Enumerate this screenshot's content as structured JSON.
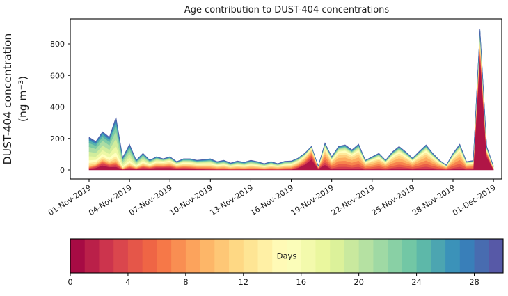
{
  "chart_data": {
    "type": "stacked_area",
    "title": "Age contribution to DUST-404 concentrations",
    "ylabel_line1": "DUST-404 concentration",
    "ylabel_line2": "(ng m⁻³)",
    "x_axis": {
      "start": "01-Nov-2019 00:00",
      "end": "01-Dec-2019 00:00",
      "step_days": 0.5,
      "tick_interval_days": 3,
      "tick_labels": [
        "01-Nov-2019",
        "04-Nov-2019",
        "07-Nov-2019",
        "10-Nov-2019",
        "13-Nov-2019",
        "16-Nov-2019",
        "19-Nov-2019",
        "22-Nov-2019",
        "25-Nov-2019",
        "28-Nov-2019",
        "01-Dec-2019"
      ]
    },
    "y_axis": {
      "ticks": [
        0,
        200,
        400,
        600,
        800
      ],
      "lim": [
        -57,
        960
      ]
    },
    "totals_ng_m3": [
      208,
      181,
      243,
      208,
      336,
      80,
      164,
      62,
      106,
      62,
      84,
      71,
      84,
      53,
      71,
      71,
      62,
      66,
      71,
      53,
      62,
      44,
      57,
      49,
      62,
      53,
      40,
      53,
      40,
      55,
      57,
      75,
      106,
      150,
      25,
      172,
      84,
      150,
      159,
      128,
      164,
      62,
      84,
      106,
      62,
      115,
      150,
      115,
      75,
      119,
      159,
      106,
      62,
      31,
      106,
      164,
      53,
      60,
      895,
      150,
      25
    ],
    "age_bands": {
      "bin_days": 2,
      "count": 15,
      "vmin_days": 0,
      "vmax_days": 30
    },
    "age_profile_keyframes": [
      {
        "t": 0.0,
        "fracs": [
          0.03,
          0.02,
          0.02,
          0.02,
          0.03,
          0.04,
          0.06,
          0.08,
          0.12,
          0.14,
          0.15,
          0.12,
          0.08,
          0.05,
          0.04
        ]
      },
      {
        "t": 1.0,
        "fracs": [
          0.12,
          0.05,
          0.03,
          0.03,
          0.03,
          0.04,
          0.05,
          0.07,
          0.1,
          0.12,
          0.13,
          0.1,
          0.07,
          0.04,
          0.02
        ]
      },
      {
        "t": 2.5,
        "fracs": [
          0.03,
          0.03,
          0.02,
          0.02,
          0.03,
          0.04,
          0.05,
          0.08,
          0.13,
          0.15,
          0.15,
          0.11,
          0.07,
          0.05,
          0.04
        ]
      },
      {
        "t": 5.5,
        "fracs": [
          0.18,
          0.08,
          0.06,
          0.07,
          0.08,
          0.08,
          0.09,
          0.09,
          0.07,
          0.05,
          0.04,
          0.04,
          0.03,
          0.02,
          0.02
        ]
      },
      {
        "t": 9.0,
        "fracs": [
          0.05,
          0.05,
          0.06,
          0.07,
          0.08,
          0.09,
          0.1,
          0.09,
          0.08,
          0.07,
          0.06,
          0.06,
          0.05,
          0.05,
          0.04
        ]
      },
      {
        "t": 12.0,
        "fracs": [
          0.04,
          0.04,
          0.05,
          0.07,
          0.09,
          0.1,
          0.1,
          0.09,
          0.08,
          0.07,
          0.07,
          0.06,
          0.05,
          0.05,
          0.04
        ]
      },
      {
        "t": 15.0,
        "fracs": [
          0.05,
          0.05,
          0.07,
          0.09,
          0.1,
          0.1,
          0.1,
          0.09,
          0.08,
          0.07,
          0.06,
          0.05,
          0.04,
          0.03,
          0.02
        ]
      },
      {
        "t": 16.5,
        "fracs": [
          0.45,
          0.1,
          0.08,
          0.08,
          0.07,
          0.06,
          0.05,
          0.03,
          0.02,
          0.02,
          0.01,
          0.01,
          0.01,
          0.005,
          0.005
        ]
      },
      {
        "t": 18.0,
        "fracs": [
          0.06,
          0.08,
          0.11,
          0.13,
          0.13,
          0.11,
          0.09,
          0.07,
          0.05,
          0.04,
          0.03,
          0.03,
          0.03,
          0.02,
          0.02
        ]
      },
      {
        "t": 21.0,
        "fracs": [
          0.05,
          0.07,
          0.1,
          0.13,
          0.14,
          0.12,
          0.09,
          0.07,
          0.05,
          0.04,
          0.04,
          0.03,
          0.03,
          0.02,
          0.02
        ]
      },
      {
        "t": 24.0,
        "fracs": [
          0.06,
          0.08,
          0.11,
          0.13,
          0.13,
          0.11,
          0.09,
          0.07,
          0.05,
          0.04,
          0.03,
          0.03,
          0.03,
          0.02,
          0.02
        ]
      },
      {
        "t": 27.5,
        "fracs": [
          0.05,
          0.08,
          0.12,
          0.14,
          0.13,
          0.11,
          0.09,
          0.07,
          0.05,
          0.04,
          0.03,
          0.03,
          0.02,
          0.02,
          0.02
        ]
      },
      {
        "t": 28.5,
        "fracs": [
          0.08,
          0.09,
          0.11,
          0.12,
          0.12,
          0.1,
          0.09,
          0.07,
          0.05,
          0.04,
          0.03,
          0.03,
          0.03,
          0.02,
          0.02
        ]
      },
      {
        "t": 29.0,
        "fracs": [
          0.8,
          0.04,
          0.02,
          0.02,
          0.02,
          0.02,
          0.01,
          0.01,
          0.01,
          0.01,
          0.01,
          0.01,
          0.01,
          0.005,
          0.005
        ]
      },
      {
        "t": 29.5,
        "fracs": [
          0.55,
          0.08,
          0.05,
          0.04,
          0.04,
          0.04,
          0.03,
          0.03,
          0.03,
          0.02,
          0.02,
          0.02,
          0.02,
          0.015,
          0.015
        ]
      },
      {
        "t": 30.0,
        "fracs": [
          0.1,
          0.08,
          0.08,
          0.08,
          0.08,
          0.08,
          0.07,
          0.07,
          0.06,
          0.06,
          0.06,
          0.05,
          0.05,
          0.04,
          0.04
        ]
      }
    ],
    "colorbar": {
      "label": "Days",
      "ticks": [
        0,
        4,
        8,
        12,
        16,
        20,
        24,
        28
      ],
      "vmin": 0,
      "vmax": 30,
      "segments": 30
    },
    "colormap_spectral_anchors": [
      "#9e0142",
      "#d53e4f",
      "#f46d43",
      "#fdae61",
      "#fee08b",
      "#ffffbf",
      "#e6f598",
      "#abdda4",
      "#66c2a5",
      "#3288bd",
      "#5e4fa2"
    ],
    "frame_color": "#000000",
    "text_color": "#1a1a1a"
  }
}
